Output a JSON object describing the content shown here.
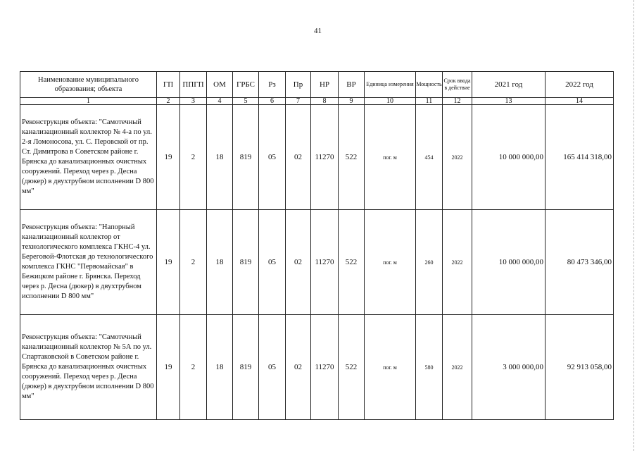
{
  "page_number": "41",
  "header": {
    "columns": [
      "Наименование муниципального образования; объекта",
      "ГП",
      "ППГП",
      "ОМ",
      "ГРБС",
      "Рз",
      "Пр",
      "НР",
      "ВР",
      "Единица измерения",
      "Мощность",
      "Срок ввода в действие",
      "2021 год",
      "2022 год"
    ],
    "numbers": [
      "1",
      "2",
      "3",
      "4",
      "5",
      "6",
      "7",
      "8",
      "9",
      "10",
      "11",
      "12",
      "13",
      "14"
    ]
  },
  "rows": [
    {
      "cells": [
        "Реконструкция объекта: \"Самотечный канализационный коллектор № 4-а по ул. 2-я Ломоносова, ул. С. Перовской от пр. Ст. Димитрова в Советском районе г. Брянска до канализационных очистных сооружений. Переход через р. Десна (дюкер) в двухтрубном исполнении D 800 мм\"",
        "19",
        "2",
        "18",
        "819",
        "05",
        "02",
        "11270",
        "522",
        "пог. м",
        "454",
        "2022",
        "10 000 000,00",
        "165 414 318,00"
      ]
    },
    {
      "cells": [
        "Реконструкция объекта: \"Напорный канализационный коллектор от технологического комплекса ГКНС-4 ул. Береговой-Флотская до технологического комплекса ГКНС \"Первомайская\" в Бежицком районе г. Брянска. Переход через р. Десна (дюкер) в двухтрубном исполнении D 800 мм\"",
        "19",
        "2",
        "18",
        "819",
        "05",
        "02",
        "11270",
        "522",
        "пог. м",
        "260",
        "2022",
        "10 000 000,00",
        "80 473 346,00"
      ]
    },
    {
      "cells": [
        "Реконструкция объекта: \"Самотечный канализационный коллектор № 5А по ул. Спартаковской в Советском районе г. Брянска до канализационных очистных сооружений. Переход через р. Десна (дюкер) в двухтрубном исполнении D 800 мм\"",
        "19",
        "2",
        "18",
        "819",
        "05",
        "02",
        "11270",
        "522",
        "пог. м",
        "580",
        "2022",
        "3 000 000,00",
        "92 913 058,00"
      ]
    }
  ]
}
